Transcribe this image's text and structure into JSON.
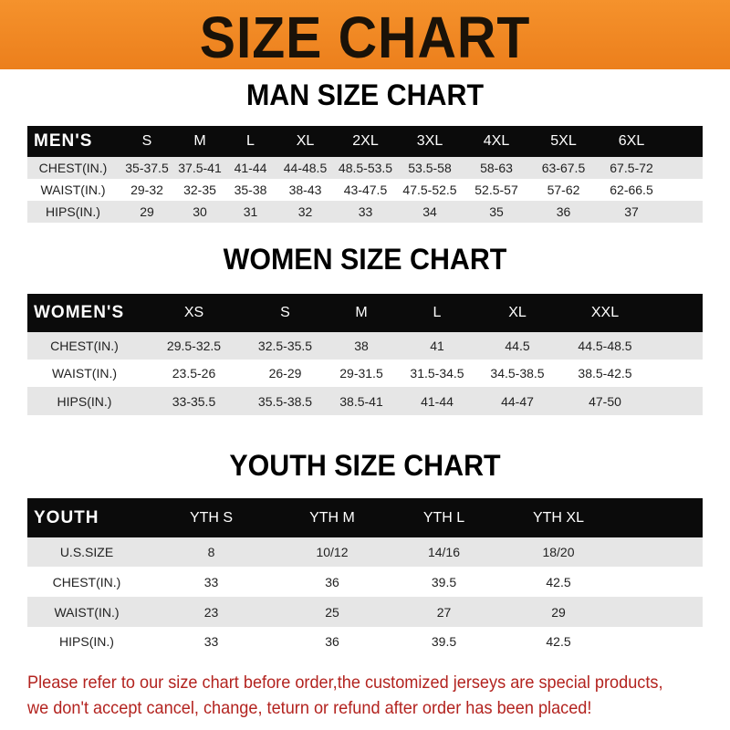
{
  "banner": {
    "title": "SIZE CHART",
    "color": "#f08a24"
  },
  "men": {
    "title": "MAN SIZE CHART",
    "header": [
      "MEN'S",
      "S",
      "M",
      "L",
      "XL",
      "2XL",
      "3XL",
      "4XL",
      "5XL",
      "6XL"
    ],
    "rows": [
      [
        "CHEST(IN.)",
        "35-37.5",
        "37.5-41",
        "41-44",
        "44-48.5",
        "48.5-53.5",
        "53.5-58",
        "58-63",
        "63-67.5",
        "67.5-72"
      ],
      [
        "WAIST(IN.)",
        "29-32",
        "32-35",
        "35-38",
        "38-43",
        "43-47.5",
        "47.5-52.5",
        "52.5-57",
        "57-62",
        "62-66.5"
      ],
      [
        "HIPS(IN.)",
        "29",
        "30",
        "31",
        "32",
        "33",
        "34",
        "35",
        "36",
        "37"
      ]
    ]
  },
  "women": {
    "title": "WOMEN SIZE CHART",
    "header": [
      "WOMEN'S",
      "XS",
      "S",
      "M",
      "L",
      "XL",
      "XXL"
    ],
    "rows": [
      [
        "CHEST(IN.)",
        "29.5-32.5",
        "32.5-35.5",
        "38",
        "41",
        "44.5",
        "44.5-48.5"
      ],
      [
        "WAIST(IN.)",
        "23.5-26",
        "26-29",
        "29-31.5",
        "31.5-34.5",
        "34.5-38.5",
        "38.5-42.5"
      ],
      [
        "HIPS(IN.)",
        "33-35.5",
        "35.5-38.5",
        "38.5-41",
        "41-44",
        "44-47",
        "47-50"
      ]
    ]
  },
  "youth": {
    "title": "YOUTH SIZE CHART",
    "header": [
      "YOUTH",
      "YTH S",
      "YTH M",
      "YTH L",
      "YTH XL"
    ],
    "rows": [
      [
        "U.S.SIZE",
        "8",
        "10/12",
        "14/16",
        "18/20"
      ],
      [
        "CHEST(IN.)",
        "33",
        "36",
        "39.5",
        "42.5"
      ],
      [
        "WAIST(IN.)",
        "23",
        "25",
        "27",
        "29"
      ],
      [
        "HIPS(IN.)",
        "33",
        "36",
        "39.5",
        "42.5"
      ]
    ]
  },
  "note": {
    "line1": "Please refer to our size chart before order,the customized jerseys are special products,",
    "line2": "we don't accept cancel, change, teturn or refund after order has been placed!",
    "color": "#b3231f"
  }
}
